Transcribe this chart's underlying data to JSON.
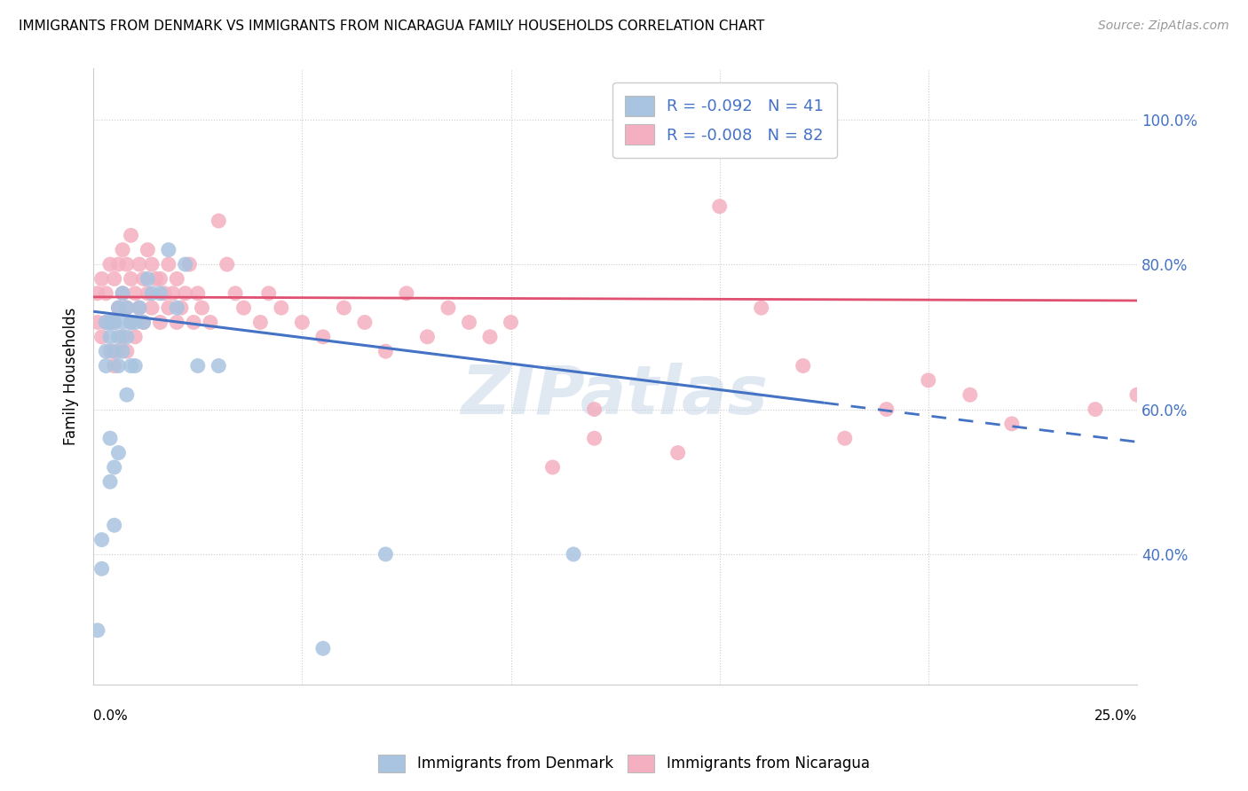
{
  "title": "IMMIGRANTS FROM DENMARK VS IMMIGRANTS FROM NICARAGUA FAMILY HOUSEHOLDS CORRELATION CHART",
  "source": "Source: ZipAtlas.com",
  "ylabel": "Family Households",
  "ytick_vals": [
    0.4,
    0.6,
    0.8,
    1.0
  ],
  "ytick_labels": [
    "40.0%",
    "60.0%",
    "80.0%",
    "100.0%"
  ],
  "xlim": [
    0.0,
    0.25
  ],
  "ylim": [
    0.22,
    1.07
  ],
  "denmark_line_color": "#4472c4",
  "nicaragua_line_color": "#e05070",
  "legend_box_denmark": "#a8c4e0",
  "legend_box_nicaragua": "#f4b0c0",
  "watermark": "ZIPatlas",
  "dk_line_x0": 0.0,
  "dk_line_y0": 0.735,
  "dk_line_x1": 0.25,
  "dk_line_y1": 0.555,
  "dk_line_solid_end": 0.175,
  "ni_line_x0": 0.0,
  "ni_line_y0": 0.755,
  "ni_line_x1": 0.25,
  "ni_line_y1": 0.75,
  "denmark_scatter_x": [
    0.001,
    0.002,
    0.002,
    0.003,
    0.003,
    0.003,
    0.004,
    0.004,
    0.004,
    0.004,
    0.005,
    0.005,
    0.005,
    0.005,
    0.006,
    0.006,
    0.006,
    0.006,
    0.007,
    0.007,
    0.007,
    0.008,
    0.008,
    0.008,
    0.009,
    0.009,
    0.01,
    0.01,
    0.011,
    0.012,
    0.013,
    0.014,
    0.016,
    0.018,
    0.02,
    0.022,
    0.025,
    0.03,
    0.055,
    0.07,
    0.115
  ],
  "denmark_scatter_y": [
    0.295,
    0.38,
    0.42,
    0.66,
    0.68,
    0.72,
    0.5,
    0.56,
    0.7,
    0.72,
    0.44,
    0.52,
    0.68,
    0.72,
    0.54,
    0.66,
    0.7,
    0.74,
    0.68,
    0.72,
    0.76,
    0.62,
    0.7,
    0.74,
    0.66,
    0.72,
    0.66,
    0.72,
    0.74,
    0.72,
    0.78,
    0.76,
    0.76,
    0.82,
    0.74,
    0.8,
    0.66,
    0.66,
    0.27,
    0.4,
    0.4
  ],
  "nicaragua_scatter_x": [
    0.001,
    0.001,
    0.002,
    0.002,
    0.003,
    0.003,
    0.004,
    0.004,
    0.004,
    0.005,
    0.005,
    0.005,
    0.006,
    0.006,
    0.006,
    0.007,
    0.007,
    0.007,
    0.008,
    0.008,
    0.008,
    0.009,
    0.009,
    0.009,
    0.01,
    0.01,
    0.011,
    0.011,
    0.012,
    0.012,
    0.013,
    0.013,
    0.014,
    0.014,
    0.015,
    0.016,
    0.016,
    0.017,
    0.018,
    0.018,
    0.019,
    0.02,
    0.02,
    0.021,
    0.022,
    0.023,
    0.024,
    0.025,
    0.026,
    0.028,
    0.03,
    0.032,
    0.034,
    0.036,
    0.04,
    0.042,
    0.045,
    0.05,
    0.055,
    0.06,
    0.065,
    0.07,
    0.075,
    0.08,
    0.085,
    0.09,
    0.095,
    0.1,
    0.11,
    0.12,
    0.14,
    0.15,
    0.16,
    0.17,
    0.18,
    0.19,
    0.2,
    0.21,
    0.22,
    0.24,
    0.25,
    0.12
  ],
  "nicaragua_scatter_y": [
    0.72,
    0.76,
    0.7,
    0.78,
    0.72,
    0.76,
    0.68,
    0.72,
    0.8,
    0.66,
    0.72,
    0.78,
    0.68,
    0.74,
    0.8,
    0.7,
    0.76,
    0.82,
    0.68,
    0.74,
    0.8,
    0.72,
    0.78,
    0.84,
    0.7,
    0.76,
    0.74,
    0.8,
    0.72,
    0.78,
    0.76,
    0.82,
    0.74,
    0.8,
    0.78,
    0.72,
    0.78,
    0.76,
    0.74,
    0.8,
    0.76,
    0.72,
    0.78,
    0.74,
    0.76,
    0.8,
    0.72,
    0.76,
    0.74,
    0.72,
    0.86,
    0.8,
    0.76,
    0.74,
    0.72,
    0.76,
    0.74,
    0.72,
    0.7,
    0.74,
    0.72,
    0.68,
    0.76,
    0.7,
    0.74,
    0.72,
    0.7,
    0.72,
    0.52,
    0.56,
    0.54,
    0.88,
    0.74,
    0.66,
    0.56,
    0.6,
    0.64,
    0.62,
    0.58,
    0.6,
    0.62,
    0.6
  ]
}
